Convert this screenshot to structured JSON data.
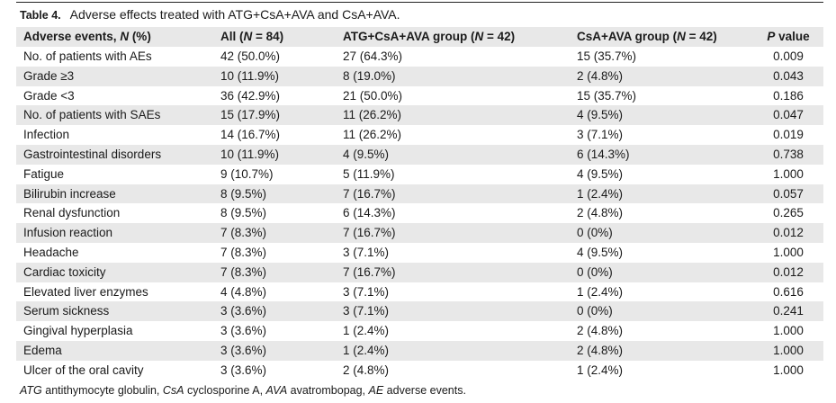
{
  "caption": {
    "table_number": "Table 4.",
    "title": "Adverse effects treated with ATG+CsA+AVA and CsA+AVA."
  },
  "columns": [
    {
      "label": "Adverse events, ",
      "var": "N",
      "rest": " (%)"
    },
    {
      "label": "All (",
      "var": "N",
      "rest": " = 84)"
    },
    {
      "label": "ATG+CsA+AVA group (",
      "var": "N",
      "rest": " = 42)"
    },
    {
      "label": "CsA+AVA group (",
      "var": "N",
      "rest": " = 42)"
    },
    {
      "label": "",
      "var": "P",
      "rest": " value"
    }
  ],
  "rows": [
    [
      "No. of patients with AEs",
      "42 (50.0%)",
      "27 (64.3%)",
      "15 (35.7%)",
      "0.009"
    ],
    [
      "Grade ≥3",
      "10 (11.9%)",
      "8 (19.0%)",
      "2 (4.8%)",
      "0.043"
    ],
    [
      "Grade <3",
      "36 (42.9%)",
      "21 (50.0%)",
      "15 (35.7%)",
      "0.186"
    ],
    [
      "No. of patients with SAEs",
      "15 (17.9%)",
      "11 (26.2%)",
      "4 (9.5%)",
      "0.047"
    ],
    [
      "Infection",
      "14 (16.7%)",
      "11 (26.2%)",
      "3 (7.1%)",
      "0.019"
    ],
    [
      "Gastrointestinal disorders",
      "10 (11.9%)",
      "4 (9.5%)",
      "6 (14.3%)",
      "0.738"
    ],
    [
      "Fatigue",
      "9 (10.7%)",
      "5 (11.9%)",
      "4 (9.5%)",
      "1.000"
    ],
    [
      "Bilirubin increase",
      "8 (9.5%)",
      "7 (16.7%)",
      "1 (2.4%)",
      "0.057"
    ],
    [
      "Renal dysfunction",
      "8 (9.5%)",
      "6 (14.3%)",
      "2 (4.8%)",
      "0.265"
    ],
    [
      "Infusion reaction",
      "7 (8.3%)",
      "7 (16.7%)",
      "0 (0%)",
      "0.012"
    ],
    [
      "Headache",
      "7 (8.3%)",
      "3 (7.1%)",
      "4 (9.5%)",
      "1.000"
    ],
    [
      "Cardiac toxicity",
      "7 (8.3%)",
      "7 (16.7%)",
      "0 (0%)",
      "0.012"
    ],
    [
      "Elevated liver enzymes",
      "4 (4.8%)",
      "3 (7.1%)",
      "1 (2.4%)",
      "0.616"
    ],
    [
      "Serum sickness",
      "3 (3.6%)",
      "3 (7.1%)",
      "0 (0%)",
      "0.241"
    ],
    [
      "Gingival hyperplasia",
      "3 (3.6%)",
      "1 (2.4%)",
      "2 (4.8%)",
      "1.000"
    ],
    [
      "Edema",
      "3 (3.6%)",
      "1 (2.4%)",
      "2 (4.8%)",
      "1.000"
    ],
    [
      "Ulcer of the oral cavity",
      "3 (3.6%)",
      "2 (4.8%)",
      "1 (2.4%)",
      "1.000"
    ]
  ],
  "footnote": [
    {
      "abbr": "ATG",
      "def": " antithymocyte globulin, "
    },
    {
      "abbr": "CsA",
      "def": " cyclosporine A, "
    },
    {
      "abbr": "AVA",
      "def": " avatrombopag, "
    },
    {
      "abbr": "AE",
      "def": " adverse events."
    }
  ]
}
